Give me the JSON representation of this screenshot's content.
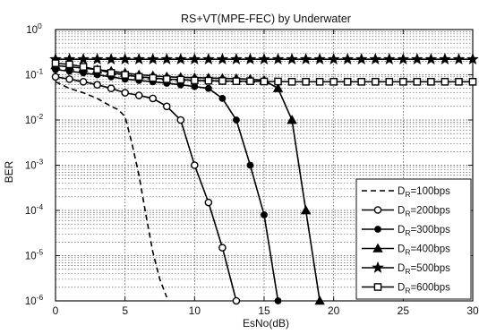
{
  "chart_data": {
    "type": "line",
    "title": "RS+VT(MPE-FEC) by Underwater",
    "xlabel": "EsNo(dB)",
    "ylabel": "BER",
    "xlim": [
      0,
      30
    ],
    "ylim": [
      1e-06,
      1
    ],
    "yscale": "log",
    "grid": true,
    "legend_position": "bottom-right",
    "x_ticks": [
      0,
      5,
      10,
      15,
      20,
      25,
      30
    ],
    "x_tick_labels": [
      "0",
      "5",
      "10",
      "15",
      "20",
      "25",
      "30"
    ],
    "y_ticks": [
      1,
      0.1,
      0.01,
      0.001,
      0.0001,
      1e-05,
      1e-06
    ],
    "y_tick_bases": [
      "10",
      "10",
      "10",
      "10",
      "10",
      "10",
      "10"
    ],
    "y_tick_exponents": [
      "0",
      "-1",
      "-2",
      "-3",
      "-4",
      "-5",
      "-6"
    ],
    "series": [
      {
        "name_main": "D",
        "name_sub": "R",
        "name_rest": "=100bps",
        "marker": "none",
        "dash": true,
        "x": [
          0,
          1,
          2,
          3,
          4,
          4.5,
          5,
          5.5,
          6,
          6.5,
          7,
          7.5,
          8
        ],
        "y": [
          0.07,
          0.05,
          0.04,
          0.03,
          0.02,
          0.017,
          0.012,
          0.003,
          0.0006,
          8e-05,
          1.2e-05,
          3e-06,
          1.2e-06
        ]
      },
      {
        "name_main": "D",
        "name_sub": "R",
        "name_rest": "=200bps",
        "marker": "circle",
        "dash": false,
        "x": [
          0,
          1,
          2,
          3,
          4,
          5,
          6,
          7,
          8,
          9,
          10,
          11,
          12,
          13
        ],
        "y": [
          0.09,
          0.08,
          0.07,
          0.06,
          0.05,
          0.04,
          0.035,
          0.03,
          0.02,
          0.01,
          0.001,
          0.00015,
          1.5e-05,
          1e-06
        ]
      },
      {
        "name_main": "D",
        "name_sub": "R",
        "name_rest": "=300bps",
        "marker": "dot",
        "dash": false,
        "x": [
          0,
          1,
          2,
          3,
          4,
          5,
          6,
          7,
          8,
          9,
          10,
          11,
          12,
          13,
          14,
          15,
          16
        ],
        "y": [
          0.13,
          0.12,
          0.11,
          0.1,
          0.09,
          0.08,
          0.075,
          0.07,
          0.065,
          0.06,
          0.055,
          0.05,
          0.03,
          0.01,
          0.001,
          8e-05,
          1e-06
        ]
      },
      {
        "name_main": "D",
        "name_sub": "R",
        "name_rest": "=400bps",
        "marker": "triangle",
        "dash": false,
        "x": [
          0,
          1,
          2,
          3,
          4,
          5,
          6,
          7,
          8,
          9,
          10,
          11,
          12,
          13,
          14,
          15,
          16,
          17,
          18,
          19
        ],
        "y": [
          0.16,
          0.15,
          0.14,
          0.13,
          0.12,
          0.11,
          0.1,
          0.095,
          0.09,
          0.088,
          0.086,
          0.085,
          0.083,
          0.082,
          0.08,
          0.075,
          0.05,
          0.01,
          0.0001,
          1e-06
        ]
      },
      {
        "name_main": "D",
        "name_sub": "R",
        "name_rest": "=500bps",
        "marker": "star",
        "dash": false,
        "x": [
          0,
          1,
          2,
          3,
          4,
          5,
          6,
          7,
          8,
          9,
          10,
          11,
          12,
          13,
          14,
          15,
          16,
          17,
          18,
          19,
          20,
          21,
          22,
          23,
          24,
          25,
          26,
          27,
          28,
          29,
          30
        ],
        "y": [
          0.22,
          0.22,
          0.22,
          0.22,
          0.22,
          0.22,
          0.22,
          0.22,
          0.22,
          0.22,
          0.22,
          0.22,
          0.22,
          0.22,
          0.22,
          0.22,
          0.22,
          0.22,
          0.22,
          0.22,
          0.22,
          0.22,
          0.22,
          0.22,
          0.22,
          0.22,
          0.22,
          0.22,
          0.22,
          0.22,
          0.22
        ]
      },
      {
        "name_main": "D",
        "name_sub": "R",
        "name_rest": "=600bps",
        "marker": "square",
        "dash": false,
        "x": [
          0,
          1,
          2,
          3,
          4,
          5,
          6,
          7,
          8,
          9,
          10,
          11,
          12,
          13,
          14,
          15,
          16,
          17,
          18,
          19,
          20,
          21,
          22,
          23,
          24,
          25,
          26,
          27,
          28,
          29,
          30
        ],
        "y": [
          0.18,
          0.17,
          0.15,
          0.13,
          0.11,
          0.1,
          0.09,
          0.085,
          0.08,
          0.078,
          0.075,
          0.074,
          0.073,
          0.072,
          0.072,
          0.071,
          0.071,
          0.07,
          0.07,
          0.07,
          0.07,
          0.07,
          0.07,
          0.07,
          0.07,
          0.07,
          0.07,
          0.07,
          0.07,
          0.07,
          0.07
        ]
      }
    ]
  }
}
